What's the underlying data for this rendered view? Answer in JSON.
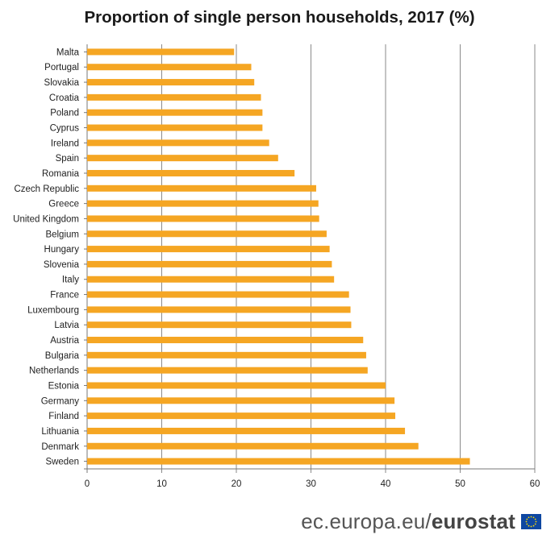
{
  "chart_data": {
    "type": "bar",
    "orientation": "horizontal",
    "title": "Proportion of single person households, 2017 (%)",
    "categories": [
      "Malta",
      "Portugal",
      "Slovakia",
      "Croatia",
      "Poland",
      "Cyprus",
      "Ireland",
      "Spain",
      "Romania",
      "Czech Republic",
      "Greece",
      "United Kingdom",
      "Belgium",
      "Hungary",
      "Slovenia",
      "Italy",
      "France",
      "Luxembourg",
      "Latvia",
      "Austria",
      "Bulgaria",
      "Netherlands",
      "Estonia",
      "Germany",
      "Finland",
      "Lithuania",
      "Denmark",
      "Sweden"
    ],
    "values": [
      19.7,
      22.0,
      22.4,
      23.3,
      23.5,
      23.5,
      24.4,
      25.6,
      27.8,
      30.7,
      31.0,
      31.1,
      32.1,
      32.5,
      32.8,
      33.1,
      35.1,
      35.3,
      35.4,
      37.0,
      37.4,
      37.6,
      40.0,
      41.2,
      41.3,
      42.6,
      44.4,
      51.3
    ],
    "xlim": [
      0,
      60
    ],
    "xticks": [
      "0",
      "10",
      "20",
      "30",
      "40",
      "50",
      "60"
    ],
    "xlabel": "",
    "ylabel": "",
    "grid": "vertical",
    "legend": "none",
    "bar_color": "#f5a623"
  },
  "footer": {
    "site": "ec.europa.eu/",
    "brand": "eurostat"
  },
  "flag_icon": "eu-flag-icon"
}
